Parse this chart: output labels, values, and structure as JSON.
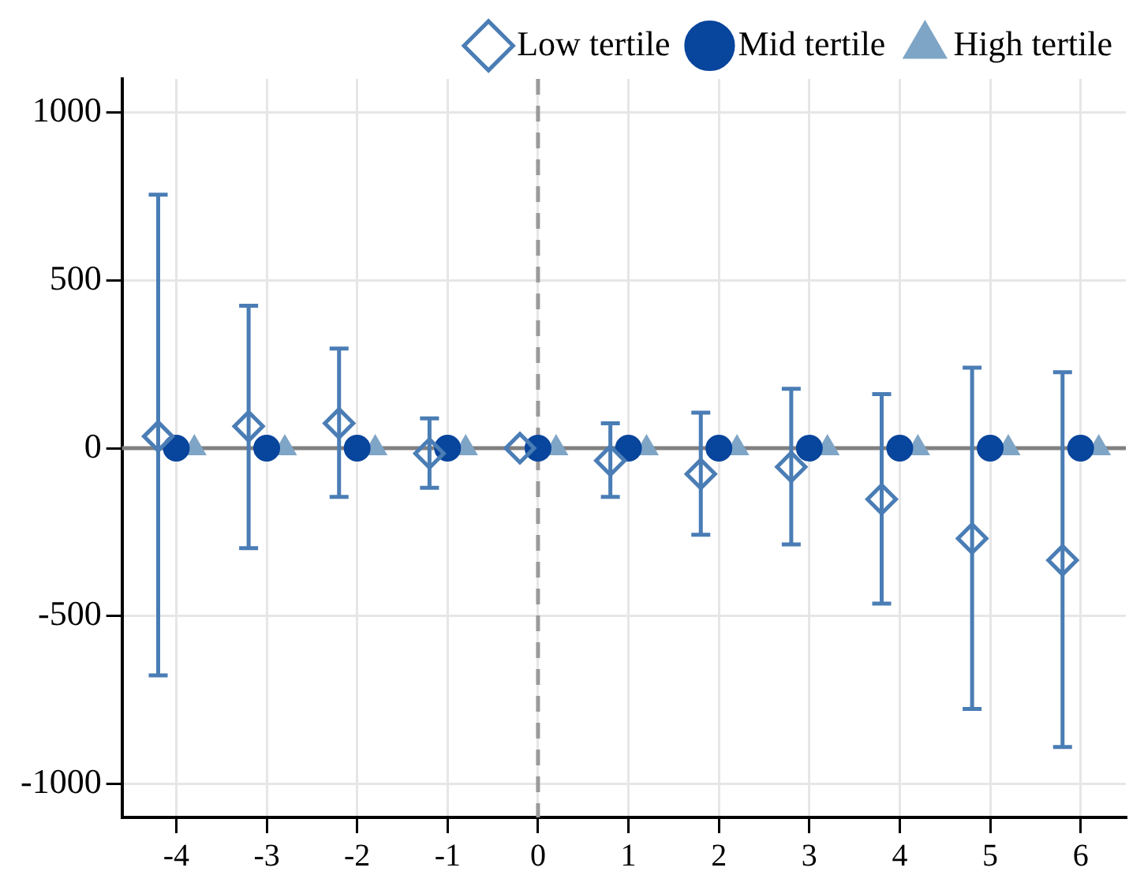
{
  "chart_data": {
    "type": "scatter",
    "xlim": [
      -4.6,
      6.5
    ],
    "ylim": [
      -1100,
      1100
    ],
    "xticks": [
      -4,
      -3,
      -2,
      -1,
      0,
      1,
      2,
      3,
      4,
      5,
      6
    ],
    "yticks": [
      -1000,
      -500,
      0,
      500,
      1000
    ],
    "grid": true,
    "legend": "top",
    "ref_lines": [
      {
        "axis": "y",
        "value": 0,
        "color": "#808080",
        "line_style": "solid"
      },
      {
        "axis": "x",
        "value": 0,
        "color": "#9a9a9a",
        "line_style": "dashed"
      }
    ],
    "series": [
      {
        "name": "Low tertile",
        "color": "#4a7db5",
        "marker": "diamond",
        "x": [
          -4.2,
          -3.2,
          -2.2,
          -1.2,
          -0.2,
          0.8,
          1.8,
          2.8,
          3.8,
          4.8,
          5.8
        ],
        "values": [
          35,
          65,
          74,
          -16,
          0,
          -37,
          -77,
          -56,
          -152,
          -269,
          -334
        ],
        "errors": [
          [
            -677,
            755
          ],
          [
            -298,
            424
          ],
          [
            -145,
            297
          ],
          [
            -118,
            89
          ],
          null,
          [
            -145,
            74
          ],
          [
            -258,
            106
          ],
          [
            -287,
            177
          ],
          [
            -463,
            161
          ],
          [
            -777,
            240
          ],
          [
            -890,
            226
          ]
        ]
      },
      {
        "name": "Mid tertile",
        "color": "#08459c",
        "marker": "circle",
        "x": [
          -4,
          -3,
          -2,
          -1,
          0,
          1,
          2,
          3,
          4,
          5,
          6
        ],
        "values": [
          0,
          0,
          0,
          0,
          0,
          0,
          0,
          0,
          0,
          0,
          0
        ]
      },
      {
        "name": "High tertile",
        "color": "#7fa5c6",
        "marker": "triangle",
        "x": [
          -3.8,
          -2.8,
          -1.8,
          -0.8,
          0.2,
          1.2,
          2.2,
          3.2,
          4.2,
          5.2,
          6.2
        ],
        "values": [
          0,
          0,
          0,
          0,
          0,
          0,
          0,
          0,
          0,
          0,
          0
        ]
      }
    ]
  }
}
